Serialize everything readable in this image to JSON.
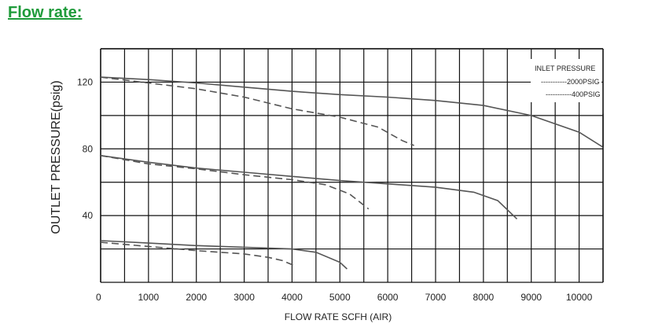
{
  "heading": "Flow rate:",
  "colors": {
    "heading": "#1e9b3a",
    "grid": "#111111",
    "series": "#555555"
  },
  "chart_data": {
    "type": "line",
    "title": "",
    "xlabel": "FLOW RATE SCFH (AIR)",
    "ylabel": "OUTLET PRESSURE(psig)",
    "xlim": [
      0,
      10500
    ],
    "ylim": [
      0,
      140
    ],
    "x_ticks": [
      0,
      1000,
      2000,
      3000,
      4000,
      5000,
      6000,
      7000,
      8000,
      9000,
      10000
    ],
    "y_ticks": [
      40,
      80,
      120
    ],
    "grid": true,
    "legend": {
      "title": "INLET PRESSURE",
      "placement": "top-right",
      "entries": [
        {
          "label": "-----------2000PSIG",
          "style": "solid"
        },
        {
          "label": "-----------400PSIG",
          "style": "dashed"
        }
      ]
    },
    "series": [
      {
        "group": "2000PSIG",
        "style": "solid",
        "points": [
          [
            0,
            123
          ],
          [
            1000,
            121.5
          ],
          [
            2000,
            119.5
          ],
          [
            3000,
            117
          ],
          [
            4000,
            114.5
          ],
          [
            5000,
            112.5
          ],
          [
            6000,
            111
          ],
          [
            7000,
            109
          ],
          [
            8000,
            106
          ],
          [
            9000,
            100
          ],
          [
            10000,
            90
          ],
          [
            10500,
            81
          ]
        ]
      },
      {
        "group": "400PSIG",
        "style": "dashed",
        "points": [
          [
            0,
            123
          ],
          [
            1000,
            119.5
          ],
          [
            2000,
            116
          ],
          [
            3000,
            111
          ],
          [
            4000,
            104
          ],
          [
            5000,
            99
          ],
          [
            5800,
            93
          ],
          [
            6300,
            85
          ],
          [
            6550,
            82
          ]
        ]
      },
      {
        "group": "2000PSIG",
        "style": "solid",
        "points": [
          [
            0,
            76
          ],
          [
            1000,
            72
          ],
          [
            2000,
            68.5
          ],
          [
            3000,
            66
          ],
          [
            4000,
            63.5
          ],
          [
            5000,
            61
          ],
          [
            6000,
            59
          ],
          [
            7000,
            57
          ],
          [
            7800,
            54
          ],
          [
            8300,
            49
          ],
          [
            8700,
            38
          ]
        ]
      },
      {
        "group": "400PSIG",
        "style": "dashed",
        "points": [
          [
            0,
            76
          ],
          [
            1000,
            71
          ],
          [
            2000,
            68
          ],
          [
            3000,
            64.5
          ],
          [
            4000,
            61.5
          ],
          [
            4700,
            58.5
          ],
          [
            5200,
            53
          ],
          [
            5600,
            44
          ]
        ]
      },
      {
        "group": "2000PSIG",
        "style": "solid",
        "points": [
          [
            0,
            25
          ],
          [
            1000,
            23.5
          ],
          [
            2000,
            22
          ],
          [
            3000,
            21
          ],
          [
            4000,
            20
          ],
          [
            4500,
            18
          ],
          [
            5000,
            12
          ],
          [
            5150,
            8
          ]
        ]
      },
      {
        "group": "400PSIG",
        "style": "dashed",
        "points": [
          [
            0,
            24
          ],
          [
            1000,
            21.5
          ],
          [
            2000,
            19
          ],
          [
            3000,
            17
          ],
          [
            3500,
            15
          ],
          [
            3800,
            13
          ],
          [
            4050,
            10
          ]
        ]
      }
    ]
  }
}
